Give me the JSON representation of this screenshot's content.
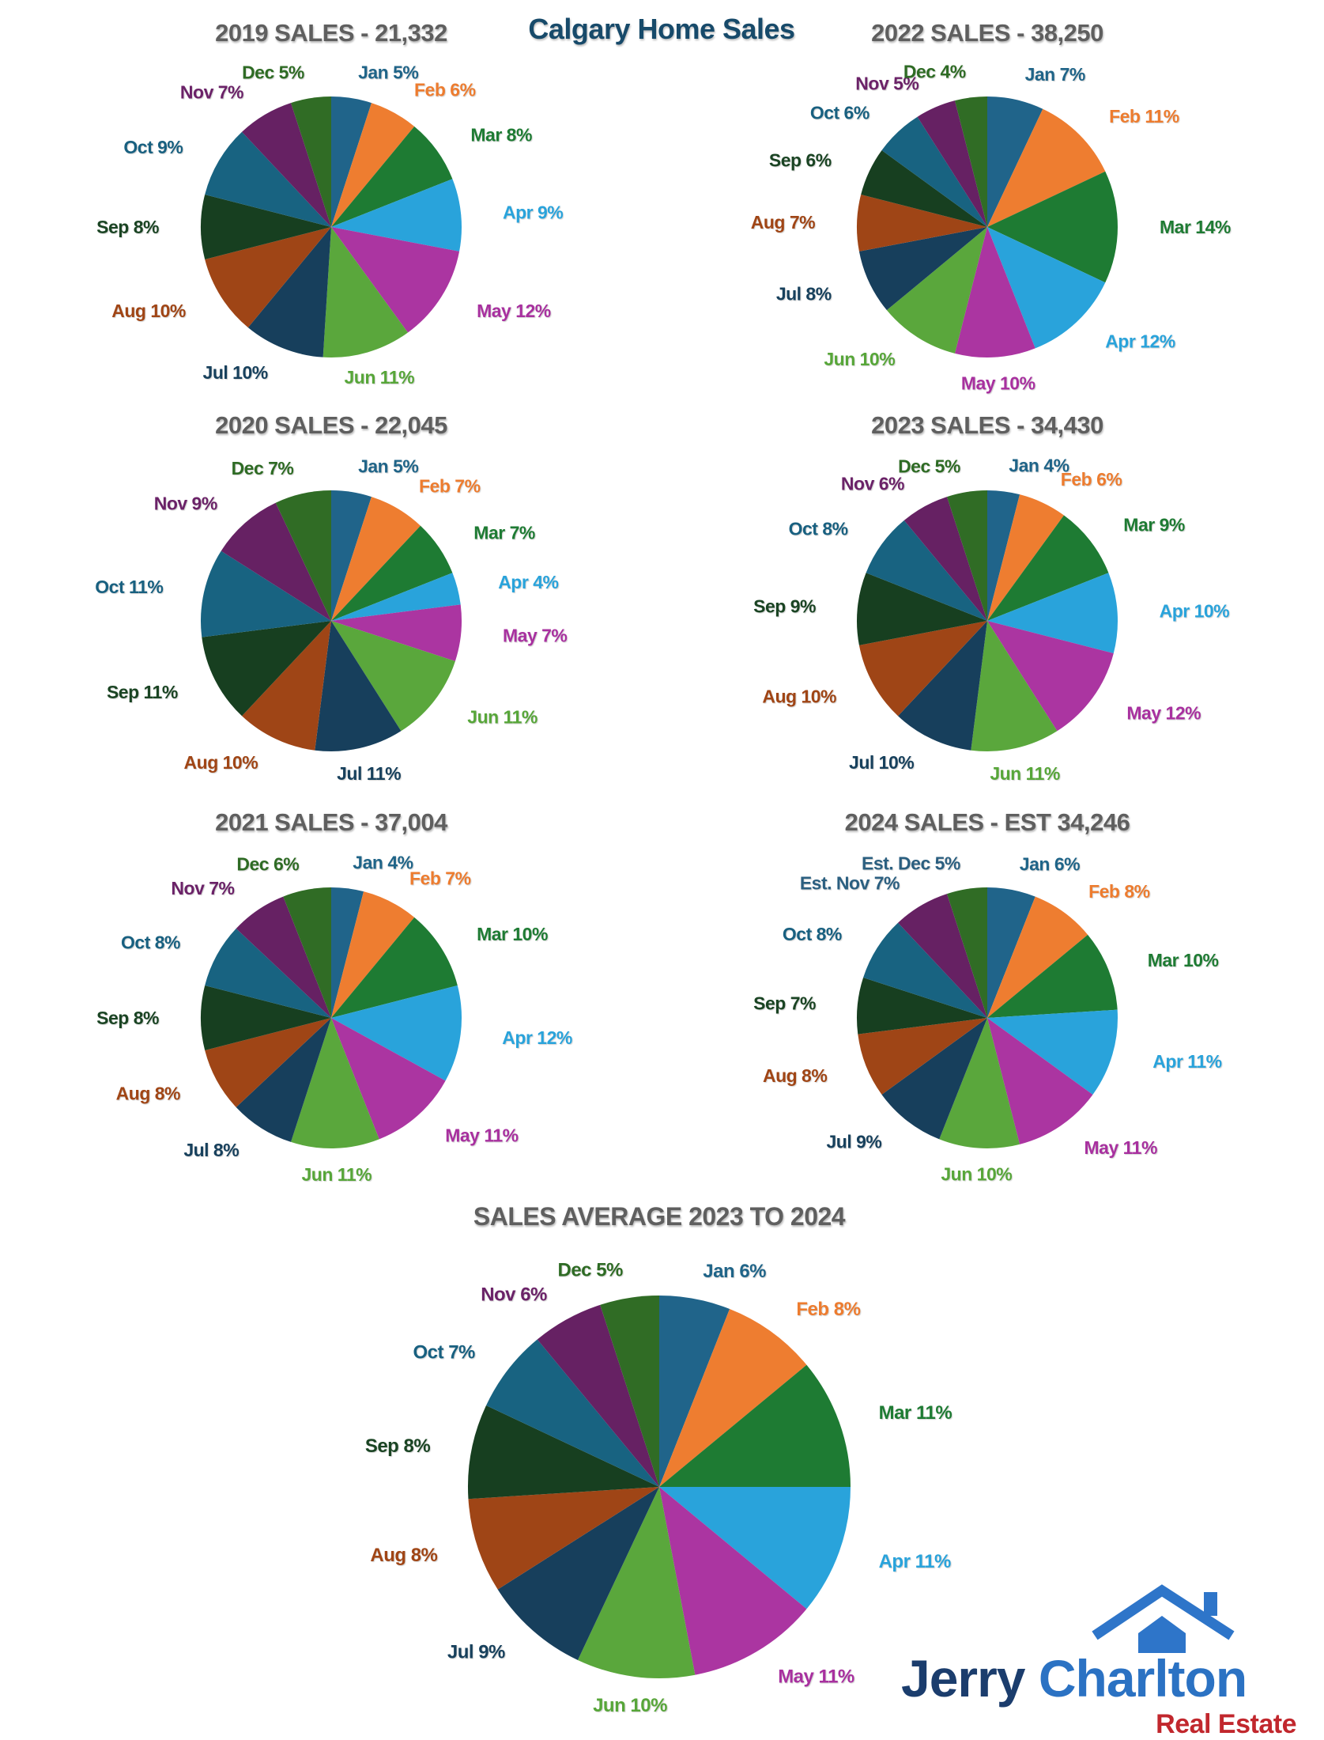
{
  "page_title": "Calgary Home Sales",
  "colors": {
    "background": "#FFFFFF",
    "header_color": "#174A6A",
    "chart_title_color": "#5F5F5F"
  },
  "palette": {
    "slice_colors": [
      "#20648A",
      "#EE7D30",
      "#1E7B33",
      "#29A3DB",
      "#AB35A1",
      "#5AA73C",
      "#173F5C",
      "#9F4516",
      "#173F20",
      "#186381",
      "#662163",
      "#306C25"
    ],
    "label_colors": [
      "#1F6488",
      "#ED7C2F",
      "#1E7B33",
      "#29A3DB",
      "#A8309F",
      "#57A639",
      "#17405C",
      "#A04515",
      "#1A4423",
      "#186080",
      "#6B2268",
      "#2E6B24"
    ]
  },
  "chart_data": [
    {
      "type": "pie",
      "title": "2019 SALES - 21,332",
      "total_sales": "21,332",
      "categories": [
        "Jan",
        "Feb",
        "Mar",
        "Apr",
        "May",
        "Jun",
        "Jul",
        "Aug",
        "Sep",
        "Oct",
        "Nov",
        "Dec"
      ],
      "values": [
        5,
        6,
        8,
        9,
        12,
        11,
        10,
        10,
        8,
        9,
        7,
        5
      ],
      "labels": [
        "Jan 5%",
        "Feb 6%",
        "Mar 8%",
        "Apr 9%",
        "May 12%",
        "Jun 11%",
        "Jul 10%",
        "Aug 10%",
        "Sep 8%",
        "Oct 9%",
        "Nov 7%",
        "Dec 5%"
      ]
    },
    {
      "type": "pie",
      "title": "2020 SALES - 22,045",
      "total_sales": "22,045",
      "categories": [
        "Jan",
        "Feb",
        "Mar",
        "Apr",
        "May",
        "Jun",
        "Jul",
        "Aug",
        "Sep",
        "Oct",
        "Nov",
        "Dec"
      ],
      "values": [
        5,
        7,
        7,
        4,
        7,
        11,
        11,
        10,
        11,
        11,
        9,
        7
      ],
      "labels": [
        "Jan 5%",
        "Feb 7%",
        "Mar 7%",
        "Apr 4%",
        "May 7%",
        "Jun 11%",
        "Jul 11%",
        "Aug 10%",
        "Sep 11%",
        "Oct 11%",
        "Nov 9%",
        "Dec 7%"
      ]
    },
    {
      "type": "pie",
      "title": "2021 SALES - 37,004",
      "total_sales": "37,004",
      "categories": [
        "Jan",
        "Feb",
        "Mar",
        "Apr",
        "May",
        "Jun",
        "Jul",
        "Aug",
        "Sep",
        "Oct",
        "Nov",
        "Dec"
      ],
      "values": [
        4,
        7,
        10,
        12,
        11,
        11,
        8,
        8,
        8,
        8,
        7,
        6
      ],
      "labels": [
        "Jan 4%",
        "Feb 7%",
        "Mar 10%",
        "Apr 12%",
        "May 11%",
        "Jun 11%",
        "Jul 8%",
        "Aug 8%",
        "Sep 8%",
        "Oct 8%",
        "Nov 7%",
        "Dec 6%"
      ]
    },
    {
      "type": "pie",
      "title": "2022 SALES - 38,250",
      "total_sales": "38,250",
      "categories": [
        "Jan",
        "Feb",
        "Mar",
        "Apr",
        "May",
        "Jun",
        "Jul",
        "Aug",
        "Sep",
        "Oct",
        "Nov",
        "Dec"
      ],
      "values": [
        7,
        11,
        14,
        12,
        10,
        10,
        8,
        7,
        6,
        6,
        5,
        4
      ],
      "labels": [
        "Jan 7%",
        "Feb 11%",
        "Mar 14%",
        "Apr 12%",
        "May 10%",
        "Jun 10%",
        "Jul 8%",
        "Aug 7%",
        "Sep 6%",
        "Oct 6%",
        "Nov 5%",
        "Dec 4%"
      ]
    },
    {
      "type": "pie",
      "title": "2023 SALES - 34,430",
      "total_sales": "34,430",
      "categories": [
        "Jan",
        "Feb",
        "Mar",
        "Apr",
        "May",
        "Jun",
        "Jul",
        "Aug",
        "Sep",
        "Oct",
        "Nov",
        "Dec"
      ],
      "values": [
        4,
        6,
        9,
        10,
        12,
        11,
        10,
        10,
        9,
        8,
        6,
        5
      ],
      "labels": [
        "Jan 4%",
        "Feb 6%",
        "Mar 9%",
        "Apr 10%",
        "May 12%",
        "Jun 11%",
        "Jul 10%",
        "Aug 10%",
        "Sep 9%",
        "Oct 8%",
        "Nov 6%",
        "Dec 5%"
      ]
    },
    {
      "type": "pie",
      "title": "2024 SALES - EST 34,246",
      "total_sales": "EST 34,246",
      "categories": [
        "Jan",
        "Feb",
        "Mar",
        "Apr",
        "May",
        "Jun",
        "Jul",
        "Aug",
        "Sep",
        "Oct",
        "Nov",
        "Dec"
      ],
      "values": [
        6,
        8,
        10,
        11,
        11,
        10,
        9,
        8,
        7,
        8,
        7,
        5
      ],
      "labels": [
        "Jan 6%",
        "Feb 8%",
        "Mar 10%",
        "Apr 11%",
        "May 11%",
        "Jun 10%",
        "Jul 9%",
        "Aug 8%",
        "Sep 7%",
        "Oct 8%",
        "Est. Nov 7%",
        "Est. Dec 5%"
      ],
      "label_color_overrides": {
        "10": "#2B5F80",
        "11": "#2B5F80"
      }
    },
    {
      "type": "pie",
      "title": "SALES AVERAGE 2023 TO 2024",
      "categories": [
        "Jan",
        "Feb",
        "Mar",
        "Apr",
        "May",
        "Jun",
        "Jul",
        "Aug",
        "Sep",
        "Oct",
        "Nov",
        "Dec"
      ],
      "values": [
        6,
        8,
        11,
        11,
        11,
        10,
        9,
        8,
        8,
        7,
        6,
        5
      ],
      "labels": [
        "Jan 6%",
        "Feb 8%",
        "Mar 11%",
        "Apr 11%",
        "May 11%",
        "Jun 10%",
        "Jul 9%",
        "Aug 8%",
        "Sep 8%",
        "Oct 7%",
        "Nov 6%",
        "Dec 5%"
      ]
    }
  ],
  "logo": {
    "brand_first": "Jerry",
    "brand_second": "Charlton",
    "tagline": "Real Estate",
    "brand_first_color": "#1B3D6D",
    "brand_second_color": "#2B72C3",
    "tagline_color": "#C1272D",
    "house_color": "#2E75C9"
  }
}
